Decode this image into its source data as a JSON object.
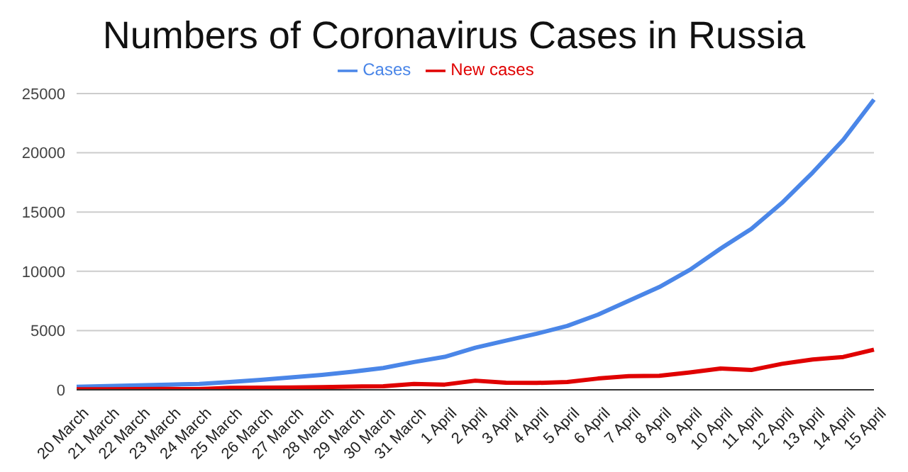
{
  "chart_data": {
    "type": "line",
    "title": "Numbers of Coronavirus Cases in Russia",
    "categories": [
      "20 March",
      "21 March",
      "22 March",
      "23 March",
      "24 March",
      "25 March",
      "26 March",
      "27 March",
      "28 March",
      "29 March",
      "30 March",
      "31 March",
      "1 April",
      "2 April",
      "3 April",
      "4 April",
      "5 April",
      "6 April",
      "7 April",
      "8 April",
      "9 April",
      "10 April",
      "11 April",
      "12 April",
      "13 April",
      "14 April",
      "15 April"
    ],
    "series": [
      {
        "name": "Cases",
        "color": "#4a86e8",
        "values": [
          250,
          310,
          370,
          440,
          500,
          660,
          840,
          1040,
          1260,
          1530,
          1840,
          2340,
          2780,
          3550,
          4150,
          4730,
          5390,
          6340,
          7500,
          8670,
          10130,
          11920,
          13580,
          15770,
          18330,
          21100,
          24490
        ]
      },
      {
        "name": "New cases",
        "color": "#e00000",
        "values": [
          50,
          50,
          60,
          70,
          60,
          160,
          180,
          200,
          230,
          270,
          300,
          500,
          440,
          770,
          600,
          580,
          660,
          950,
          1150,
          1180,
          1460,
          1790,
          1670,
          2190,
          2560,
          2770,
          3390
        ]
      }
    ],
    "ylim": [
      0,
      25000
    ],
    "yticks": [
      0,
      5000,
      10000,
      15000,
      20000,
      25000
    ],
    "grid": "y",
    "legend": "top",
    "marker": "none",
    "line_style": "solid"
  }
}
